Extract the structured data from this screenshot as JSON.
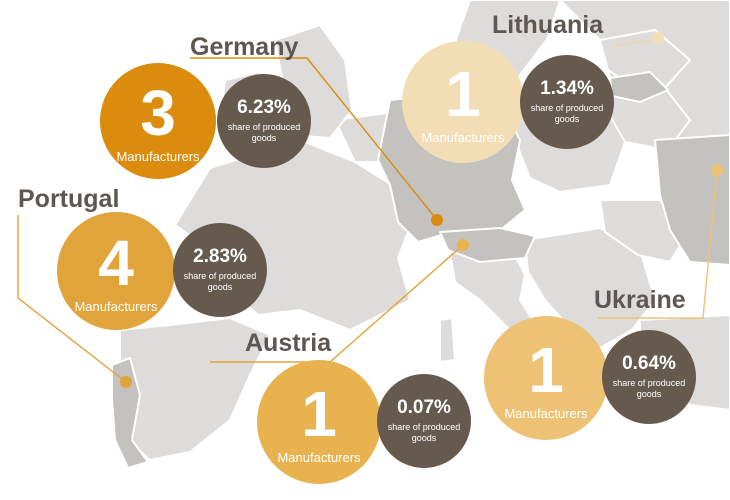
{
  "colors": {
    "germany": "#db8c0c",
    "portugal": "#e0a43a",
    "lithuania": "#f3ddb5",
    "austria": "#e8b34f",
    "ukraine": "#edc274",
    "dark_circle": "#665a4f",
    "land": "#dedcda",
    "highlight": "#c4c2be",
    "text": "#5e5751"
  },
  "markers": [
    {
      "country": "Germany",
      "manufacturers": "3",
      "manufacturers_label": "Manufacturers",
      "share": "6.23%",
      "share_label": "share of produced goods"
    },
    {
      "country": "Lithuania",
      "manufacturers": "1",
      "manufacturers_label": "Manufacturers",
      "share": "1.34%",
      "share_label": "share of produced goods"
    },
    {
      "country": "Portugal",
      "manufacturers": "4",
      "manufacturers_label": "Manufacturers",
      "share": "2.83%",
      "share_label": "share of produced goods"
    },
    {
      "country": "Austria",
      "manufacturers": "1",
      "manufacturers_label": "Manufacturers",
      "share": "0.07%",
      "share_label": "share of produced goods"
    },
    {
      "country": "Ukraine",
      "manufacturers": "1",
      "manufacturers_label": "Manufacturers",
      "share": "0.64%",
      "share_label": "share of produced goods"
    }
  ]
}
